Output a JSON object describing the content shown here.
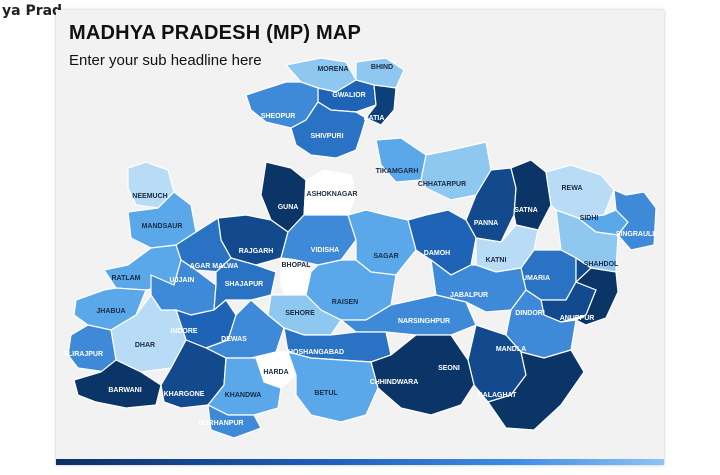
{
  "window_title": "ya Prad",
  "slide": {
    "title": "MADHYA PRADESH (MP) MAP",
    "subtitle": "Enter your sub headline here"
  },
  "districts": [
    {
      "label": "MORENA",
      "color": "#8ec8f0"
    },
    {
      "label": "BHIND",
      "color": "#8ec8f0"
    },
    {
      "label": "GWALIOR",
      "color": "#1e63b5"
    },
    {
      "label": "DATIA",
      "color": "#0d3f7a"
    },
    {
      "label": "SHEOPUR",
      "color": "#3f8ad8"
    },
    {
      "label": "SHIVPURI",
      "color": "#2a72c4"
    },
    {
      "label": "TIKAMGARH",
      "color": "#5aa8ea"
    },
    {
      "label": "CHHATARPUR",
      "color": "#8ec8f0"
    },
    {
      "label": "NEEMUCH",
      "color": "#b9dcf6"
    },
    {
      "label": "GUNA",
      "color": "#0b3566"
    },
    {
      "label": "ASHOKNAGAR",
      "color": "#ffffff"
    },
    {
      "label": "PANNA",
      "color": "#134a8e"
    },
    {
      "label": "SATNA",
      "color": "#0b3566"
    },
    {
      "label": "REWA",
      "color": "#b9dcf6"
    },
    {
      "label": "SIDHI",
      "color": "#5aa8ea"
    },
    {
      "label": "SINGRAULI",
      "color": "#3f8ad8"
    },
    {
      "label": "MANDSAUR",
      "color": "#5aa8ea"
    },
    {
      "label": "RAJGARH",
      "color": "#134a8e"
    },
    {
      "label": "AGAR MALWA",
      "color": "#2a72c4"
    },
    {
      "label": "VIDISHA",
      "color": "#3f8ad8"
    },
    {
      "label": "SAGAR",
      "color": "#5aa8ea"
    },
    {
      "label": "DAMOH",
      "color": "#1e63b5"
    },
    {
      "label": "KATNI",
      "color": "#b9dcf6"
    },
    {
      "label": "SHAHDOL",
      "color": "#8ec8f0"
    },
    {
      "label": "RATLAM",
      "color": "#5aa8ea"
    },
    {
      "label": "UJJAIN",
      "color": "#3f8ad8"
    },
    {
      "label": "SHAJAPUR",
      "color": "#2a72c4"
    },
    {
      "label": "BHOPAL",
      "color": "#ffffff"
    },
    {
      "label": "UMARIA",
      "color": "#2a72c4"
    },
    {
      "label": "RAISEN",
      "color": "#5aa8ea"
    },
    {
      "label": "JABALPUR",
      "color": "#3f8ad8"
    },
    {
      "label": "JHABUA",
      "color": "#5aa8ea"
    },
    {
      "label": "SEHORE",
      "color": "#8ec8f0"
    },
    {
      "label": "DINDORI",
      "color": "#134a8e"
    },
    {
      "label": "ANUPPUR",
      "color": "#0b3566"
    },
    {
      "label": "INDORE",
      "color": "#1e63b5"
    },
    {
      "label": "NARSINGHPUR",
      "color": "#3f8ad8"
    },
    {
      "label": "DHAR",
      "color": "#b9dcf6"
    },
    {
      "label": "DEWAS",
      "color": "#3f8ad8"
    },
    {
      "label": "MANDLA",
      "color": "#3f8ad8"
    },
    {
      "label": "ALIRAJPUR",
      "color": "#3f8ad8"
    },
    {
      "label": "HOSHANGABAD",
      "color": "#2a72c4"
    },
    {
      "label": "SEONI",
      "color": "#134a8e"
    },
    {
      "label": "HARDA",
      "color": "#ffffff"
    },
    {
      "label": "CHHINDWARA",
      "color": "#0b3566"
    },
    {
      "label": "BARWANI",
      "color": "#0b3566"
    },
    {
      "label": "KHARGONE",
      "color": "#134a8e"
    },
    {
      "label": "KHANDWA",
      "color": "#5aa8ea"
    },
    {
      "label": "BETUL",
      "color": "#5aa8ea"
    },
    {
      "label": "BALAGHAT",
      "color": "#0b3566"
    },
    {
      "label": "BURHANPUR",
      "color": "#3f8ad8"
    }
  ]
}
